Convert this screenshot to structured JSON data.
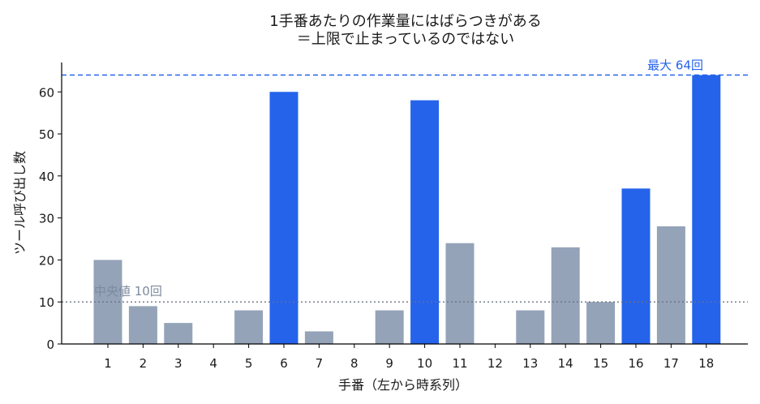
{
  "chart_data": {
    "type": "bar",
    "title_line1": "1手番あたりの作業量にはばらつきがある",
    "title_line2": "＝上限で止まっているのではない",
    "xlabel": "手番（左から時系列）",
    "ylabel": "ツール呼び出し数",
    "categories": [
      "1",
      "2",
      "3",
      "4",
      "5",
      "6",
      "7",
      "8",
      "9",
      "10",
      "11",
      "12",
      "13",
      "14",
      "15",
      "16",
      "17",
      "18"
    ],
    "values": [
      20,
      9,
      5,
      0,
      8,
      60,
      3,
      0,
      8,
      58,
      24,
      0,
      8,
      23,
      10,
      37,
      28,
      64
    ],
    "highlighted": [
      false,
      false,
      false,
      false,
      false,
      true,
      false,
      false,
      false,
      true,
      false,
      false,
      false,
      false,
      false,
      true,
      false,
      true
    ],
    "ylim": [
      0,
      67
    ],
    "yticks": [
      0,
      10,
      20,
      30,
      40,
      50,
      60
    ],
    "reference_lines": [
      {
        "value": 64,
        "label": "最大 64回",
        "style": "dashed",
        "color": "#2563eb"
      },
      {
        "value": 10,
        "label": "中央値 10回",
        "style": "dotted",
        "color": "#6b7280"
      }
    ],
    "colors": {
      "normal": "#94a3b8",
      "highlight": "#2563eb",
      "median_label": "#7c8a9e"
    },
    "grid": false
  }
}
